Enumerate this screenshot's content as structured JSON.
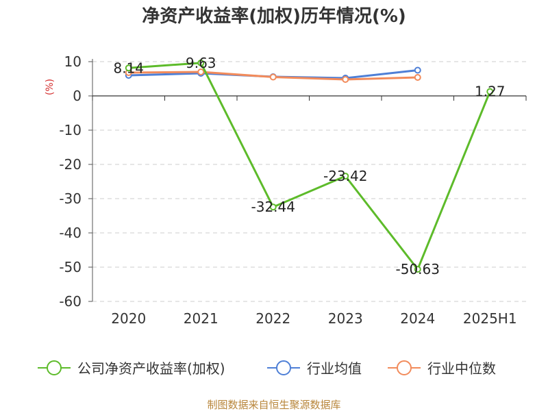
{
  "chart_data": {
    "type": "line",
    "title": "净资产收益率(加权)历年情况(%)",
    "ylabel": "(%)",
    "xlabel": "",
    "categories": [
      "2020",
      "2021",
      "2022",
      "2023",
      "2024",
      "2025H1"
    ],
    "ylim": [
      -60,
      10
    ],
    "yticks": [
      10,
      0,
      -10,
      -20,
      -30,
      -40,
      -50,
      -60
    ],
    "grid": true,
    "legend_position": "bottom",
    "series": [
      {
        "name": "公司净资产收益率(加权)",
        "color": "#5dbb2a",
        "values": [
          8.14,
          9.63,
          -32.44,
          -23.42,
          -50.63,
          1.27
        ],
        "data_labels": [
          "8.14",
          "9.63",
          "-32.44",
          "-23.42",
          "-50.63",
          "1.27"
        ]
      },
      {
        "name": "行业均值",
        "color": "#4e7fd6",
        "values": [
          6.0,
          6.6,
          5.6,
          5.2,
          7.5,
          null
        ]
      },
      {
        "name": "行业中位数",
        "color": "#f28b5b",
        "values": [
          6.8,
          7.0,
          5.5,
          4.8,
          5.4,
          null
        ]
      }
    ]
  },
  "source": "制图数据来自恒生聚源数据库"
}
